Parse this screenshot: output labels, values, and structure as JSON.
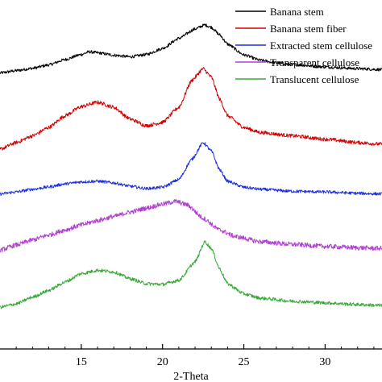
{
  "chart_data": {
    "type": "line",
    "xlabel": "2-Theta",
    "ylabel": "",
    "xlim": [
      10,
      33.5
    ],
    "ylim": [
      0,
      100
    ],
    "grid": false,
    "legend": "top-right",
    "x_ticks": [
      "15",
      "20",
      "25",
      "30"
    ],
    "series": [
      {
        "name": "Banana stem",
        "color": "#000000",
        "baseline": 80,
        "noise": 0.45,
        "points": [
          [
            10,
            80.2
          ],
          [
            11,
            80.9
          ],
          [
            12,
            81.6
          ],
          [
            13,
            82.6
          ],
          [
            14,
            84.2
          ],
          [
            15,
            85.7
          ],
          [
            15.5,
            86.5
          ],
          [
            16,
            86.2
          ],
          [
            17,
            85.5
          ],
          [
            18,
            85.0
          ],
          [
            19,
            85.7
          ],
          [
            20,
            87.5
          ],
          [
            21,
            90.5
          ],
          [
            22,
            93.3
          ],
          [
            22.6,
            94.5
          ],
          [
            23,
            93.8
          ],
          [
            23.5,
            91.6
          ],
          [
            24,
            88.8
          ],
          [
            25,
            85.6
          ],
          [
            26,
            84.0
          ],
          [
            27,
            83.2
          ],
          [
            28,
            82.7
          ],
          [
            30,
            82.0
          ],
          [
            32,
            81.5
          ],
          [
            33.5,
            81.2
          ]
        ]
      },
      {
        "name": "Banana stem fiber",
        "color": "#d40000",
        "baseline": 57,
        "noise": 0.55,
        "points": [
          [
            10,
            57.5
          ],
          [
            11,
            59.5
          ],
          [
            12,
            61.5
          ],
          [
            13,
            64.0
          ],
          [
            14,
            67.5
          ],
          [
            15,
            70.2
          ],
          [
            16,
            71.5
          ],
          [
            17,
            70.0
          ],
          [
            18,
            66.5
          ],
          [
            19,
            64.5
          ],
          [
            20,
            65.5
          ],
          [
            21,
            70.0
          ],
          [
            21.8,
            78.0
          ],
          [
            22.5,
            81.5
          ],
          [
            23,
            79.0
          ],
          [
            23.5,
            72.5
          ],
          [
            24,
            67.5
          ],
          [
            25,
            64.0
          ],
          [
            26,
            62.5
          ],
          [
            28,
            61.5
          ],
          [
            30,
            60.5
          ],
          [
            32,
            59.5
          ],
          [
            33.5,
            59.0
          ]
        ]
      },
      {
        "name": "Extracted stem cellulose",
        "color": "#1c2ee0",
        "baseline": 44,
        "noise": 0.45,
        "points": [
          [
            10,
            44.2
          ],
          [
            11,
            44.8
          ],
          [
            12,
            45.6
          ],
          [
            13,
            46.3
          ],
          [
            14,
            47.2
          ],
          [
            15,
            47.8
          ],
          [
            16,
            48.0
          ],
          [
            17,
            47.5
          ],
          [
            18,
            46.5
          ],
          [
            19,
            45.8
          ],
          [
            20,
            46.2
          ],
          [
            21,
            48.5
          ],
          [
            21.8,
            54.5
          ],
          [
            22.5,
            59.5
          ],
          [
            23,
            57.0
          ],
          [
            23.5,
            51.5
          ],
          [
            24,
            48.0
          ],
          [
            25,
            46.2
          ],
          [
            26,
            45.6
          ],
          [
            28,
            45.0
          ],
          [
            30,
            44.8
          ],
          [
            32,
            44.4
          ],
          [
            33.5,
            44.2
          ]
        ]
      },
      {
        "name": "Transparent cellulose",
        "color": "#b040d0",
        "baseline": 27,
        "noise": 0.7,
        "points": [
          [
            10,
            27.5
          ],
          [
            11,
            29.0
          ],
          [
            12,
            30.5
          ],
          [
            13,
            32.0
          ],
          [
            14,
            33.5
          ],
          [
            15,
            35.0
          ],
          [
            16,
            36.3
          ],
          [
            17,
            37.5
          ],
          [
            18,
            38.8
          ],
          [
            19,
            40.0
          ],
          [
            20,
            41.2
          ],
          [
            20.8,
            42.0
          ],
          [
            21.5,
            41.0
          ],
          [
            22.5,
            37.0
          ],
          [
            23.5,
            33.5
          ],
          [
            24.5,
            31.5
          ],
          [
            26,
            30.0
          ],
          [
            28,
            29.2
          ],
          [
            30,
            28.6
          ],
          [
            32,
            28.2
          ],
          [
            33.5,
            28.0
          ]
        ]
      },
      {
        "name": "Translucent cellulose",
        "color": "#3aa83a",
        "baseline": 10,
        "noise": 0.5,
        "points": [
          [
            10,
            10.5
          ],
          [
            11,
            11.5
          ],
          [
            12,
            13.5
          ],
          [
            13,
            15.5
          ],
          [
            14,
            18.0
          ],
          [
            15,
            20.5
          ],
          [
            16,
            21.5
          ],
          [
            17,
            21.0
          ],
          [
            18,
            19.0
          ],
          [
            19,
            17.5
          ],
          [
            20,
            17.3
          ],
          [
            21,
            18.5
          ],
          [
            22,
            24.0
          ],
          [
            22.6,
            30.0
          ],
          [
            23,
            28.0
          ],
          [
            23.5,
            22.0
          ],
          [
            24,
            17.5
          ],
          [
            25,
            14.5
          ],
          [
            26,
            13.2
          ],
          [
            28,
            12.3
          ],
          [
            30,
            11.8
          ],
          [
            32,
            11.3
          ],
          [
            33.5,
            11.0
          ]
        ]
      }
    ]
  }
}
